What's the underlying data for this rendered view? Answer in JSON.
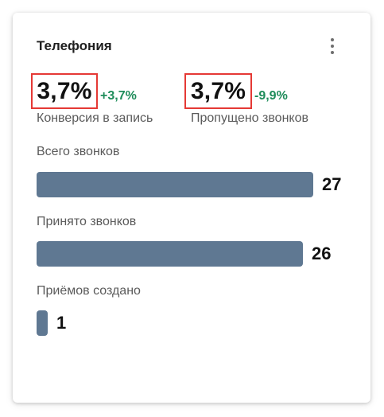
{
  "widget": {
    "title": "Телефония",
    "menu_icon": "more-vertical-icon"
  },
  "metrics": [
    {
      "value": "3,7%",
      "delta": "+3,7%",
      "label": "Конверсия в запись",
      "delta_color": "#1e8c5a"
    },
    {
      "value": "3,7%",
      "delta": "-9,9%",
      "label": "Пропущено звонков",
      "delta_color": "#1e8c5a"
    }
  ],
  "highlight_color": "#e53935",
  "bar_color": "#5f7892",
  "bars": [
    {
      "label": "Всего звонков",
      "value": 27
    },
    {
      "label": "Принято звонков",
      "value": 26
    },
    {
      "label": "Приёмов создано",
      "value": 1
    }
  ]
}
